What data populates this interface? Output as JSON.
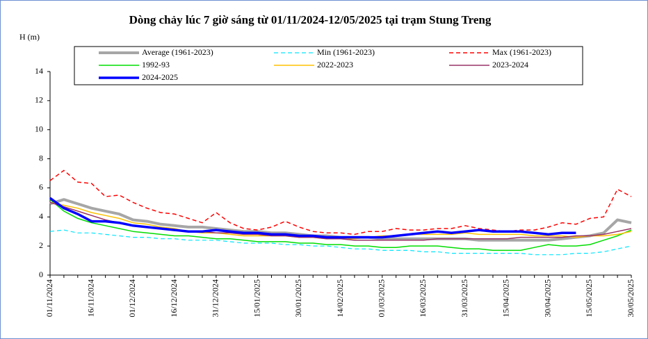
{
  "chart_data": {
    "type": "line",
    "title": "Dòng chảy lúc 7 giờ sáng từ 01/11/2024-12/05/2025 tại trạm Stung Treng",
    "y_label": "H (m)",
    "categories": [
      "01/11/2024",
      null,
      null,
      "16/11/2024",
      null,
      null,
      "01/12/2024",
      null,
      null,
      "16/12/2024",
      null,
      null,
      "31/12/2024",
      null,
      null,
      "15/01/2025",
      null,
      null,
      "30/01/2025",
      null,
      null,
      "14/02/2025",
      null,
      null,
      "01/03/2025",
      null,
      null,
      "16/03/2025",
      null,
      null,
      "31/03/2025",
      null,
      null,
      "15/04/2025",
      null,
      null,
      "30/04/2025",
      null,
      null,
      "15/05/2025",
      null,
      null,
      "30/05/2025"
    ],
    "ylim": [
      0,
      14
    ],
    "yticks": [
      0,
      2,
      4,
      6,
      8,
      10,
      12,
      14
    ],
    "series": [
      {
        "name": "Average (1961-2023)",
        "color": "#a6a6a6",
        "width": 4,
        "dashed": false,
        "values": [
          4.9,
          5.2,
          4.9,
          4.6,
          4.4,
          4.2,
          3.8,
          3.7,
          3.5,
          3.4,
          3.3,
          3.3,
          3.2,
          3.1,
          3.0,
          3.0,
          2.9,
          2.9,
          2.8,
          2.7,
          2.7,
          2.6,
          2.6,
          2.6,
          2.5,
          2.5,
          2.5,
          2.5,
          2.5,
          2.5,
          2.5,
          2.4,
          2.4,
          2.4,
          2.4,
          2.4,
          2.4,
          2.5,
          2.6,
          2.7,
          2.9,
          3.8,
          3.6
        ]
      },
      {
        "name": "Min (1961-2023)",
        "color": "#00e5ff",
        "width": 1.2,
        "dashed": true,
        "values": [
          3.0,
          3.1,
          2.9,
          2.9,
          2.8,
          2.7,
          2.6,
          2.6,
          2.5,
          2.5,
          2.4,
          2.4,
          2.4,
          2.3,
          2.2,
          2.2,
          2.2,
          2.1,
          2.1,
          2.0,
          2.0,
          1.9,
          1.8,
          1.8,
          1.7,
          1.7,
          1.7,
          1.6,
          1.6,
          1.5,
          1.5,
          1.5,
          1.5,
          1.5,
          1.5,
          1.4,
          1.4,
          1.4,
          1.5,
          1.5,
          1.6,
          1.8,
          2.0
        ]
      },
      {
        "name": "Max (1961-2023)",
        "color": "#ff0000",
        "width": 1.5,
        "dashed": true,
        "values": [
          6.5,
          7.2,
          6.4,
          6.3,
          5.4,
          5.5,
          5.0,
          4.6,
          4.3,
          4.2,
          3.9,
          3.6,
          4.3,
          3.6,
          3.2,
          3.1,
          3.3,
          3.7,
          3.3,
          3.0,
          2.9,
          2.9,
          2.8,
          3.0,
          3.0,
          3.2,
          3.1,
          3.1,
          3.2,
          3.2,
          3.4,
          3.2,
          3.1,
          3.0,
          3.1,
          3.1,
          3.3,
          3.6,
          3.5,
          3.9,
          4.0,
          5.9,
          5.4
        ]
      },
      {
        "name": "1992-93",
        "color": "#00dd00",
        "width": 1.5,
        "dashed": false,
        "values": [
          5.2,
          4.4,
          3.9,
          3.6,
          3.4,
          3.2,
          3.0,
          2.9,
          2.8,
          2.7,
          2.7,
          2.6,
          2.5,
          2.5,
          2.4,
          2.3,
          2.3,
          2.3,
          2.2,
          2.2,
          2.1,
          2.1,
          2.0,
          2.0,
          1.9,
          1.9,
          2.0,
          2.0,
          2.0,
          1.9,
          1.8,
          1.8,
          1.7,
          1.7,
          1.7,
          1.9,
          2.1,
          2.0,
          2.0,
          2.1,
          2.4,
          2.7,
          3.1
        ]
      },
      {
        "name": "2022-2023",
        "color": "#ffc000",
        "width": 1.5,
        "dashed": false,
        "values": [
          5.0,
          4.8,
          4.6,
          4.3,
          4.1,
          3.9,
          3.6,
          3.5,
          3.3,
          3.2,
          3.0,
          2.9,
          2.9,
          2.8,
          2.7,
          2.7,
          2.7,
          2.7,
          2.6,
          2.6,
          2.5,
          2.5,
          2.5,
          2.6,
          2.7,
          2.7,
          2.8,
          2.8,
          2.8,
          2.8,
          2.9,
          2.8,
          2.8,
          2.8,
          2.8,
          2.7,
          2.7,
          2.7,
          2.6,
          2.7,
          2.7,
          2.8,
          3.0
        ]
      },
      {
        "name": "2023-2024",
        "color": "#993366",
        "width": 1.5,
        "dashed": false,
        "values": [
          5.0,
          4.7,
          4.4,
          4.1,
          3.8,
          3.6,
          3.4,
          3.3,
          3.2,
          3.1,
          3.0,
          3.0,
          2.9,
          2.9,
          2.8,
          2.8,
          2.7,
          2.7,
          2.6,
          2.6,
          2.5,
          2.5,
          2.4,
          2.4,
          2.4,
          2.4,
          2.4,
          2.4,
          2.5,
          2.5,
          2.5,
          2.5,
          2.5,
          2.5,
          2.6,
          2.6,
          2.6,
          2.6,
          2.7,
          2.7,
          2.8,
          3.0,
          3.2
        ]
      },
      {
        "name": "2024-2025",
        "color": "#0000ff",
        "width": 3.5,
        "dashed": false,
        "values": [
          5.3,
          4.6,
          4.2,
          3.7,
          3.7,
          3.6,
          3.4,
          3.3,
          3.2,
          3.1,
          3.0,
          3.0,
          3.1,
          3.0,
          2.9,
          2.9,
          2.8,
          2.8,
          2.7,
          2.7,
          2.6,
          2.6,
          2.6,
          2.6,
          2.6,
          2.7,
          2.8,
          2.9,
          3.0,
          2.9,
          3.0,
          3.1,
          3.0,
          3.0,
          3.0,
          2.9,
          2.8,
          2.9,
          2.9,
          null,
          null,
          null,
          null
        ]
      }
    ]
  }
}
